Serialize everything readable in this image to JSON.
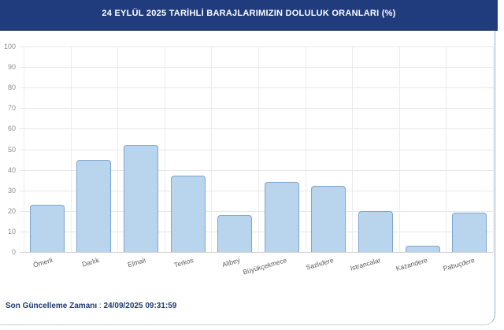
{
  "header": {
    "title": "24 EYLÜL 2025 TARİHLİ BARAJLARIMIZIN DOLULUK ORANLARI (%)"
  },
  "chart_data": {
    "type": "bar",
    "title": "24 EYLÜL 2025 TARİHLİ BARAJLARIMIZIN DOLULUK ORANLARI (%)",
    "categories": [
      "Ömerli",
      "Darlık",
      "Elmalı",
      "Terkos",
      "Alibey",
      "Büyükçekmece",
      "Sazlıdere",
      "Istrancalar",
      "Kazandere",
      "Pabuçdere"
    ],
    "values": [
      23,
      45,
      52,
      37,
      18,
      34,
      32,
      20,
      3,
      19
    ],
    "xlabel": "",
    "ylabel": "",
    "ylim": [
      0,
      100
    ],
    "ytick_step": 10,
    "yticks": [
      0,
      10,
      20,
      30,
      40,
      50,
      60,
      70,
      80,
      90,
      100
    ],
    "grid": true,
    "legend_position": "none",
    "bar_fill": "#B9D4ED",
    "bar_border": "#7BA6D2"
  },
  "footer": {
    "label": "Son Güncelleme Zamanı",
    "separator": " : ",
    "value": "24/09/2025 09:31:59"
  },
  "colors": {
    "header_bg": "#213C7D",
    "header_text": "#FFFFFF",
    "footer_text": "#1C3A6E",
    "grid_line": "#E8E8E8",
    "axis_line": "#D4D4D4",
    "tick_label": "#8C8C8C",
    "category_label": "#595959",
    "panel_border": "#9CADC9"
  }
}
